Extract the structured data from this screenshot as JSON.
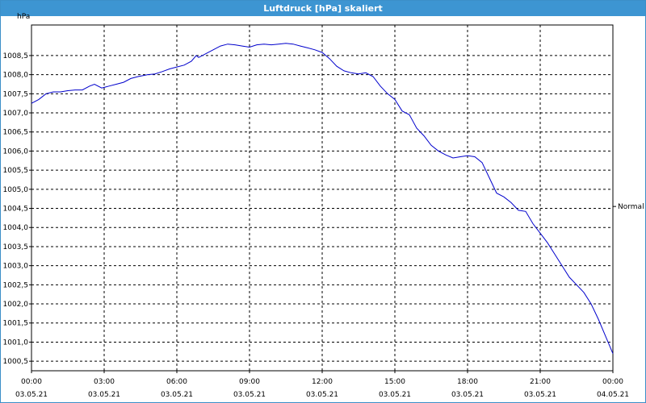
{
  "window": {
    "title": "Luftdruck [hPa] skaliert"
  },
  "colors": {
    "title_bar": "#3d95d2",
    "series_line": "#0000cc",
    "grid": "#000000"
  },
  "chart_data": {
    "type": "line",
    "title": "Luftdruck [hPa] skaliert",
    "ylabel": "hPa",
    "xlabel": "",
    "grid": true,
    "ylim": [
      1000.25,
      1009.3
    ],
    "xlim": [
      0,
      24
    ],
    "y_ticks": [
      1000.5,
      1001.0,
      1001.5,
      1002.0,
      1002.5,
      1003.0,
      1003.5,
      1004.0,
      1004.5,
      1005.0,
      1005.5,
      1006.0,
      1006.5,
      1007.0,
      1007.5,
      1008.0,
      1008.5
    ],
    "y_tick_labels": [
      "1000,5",
      "1001,0",
      "1001,5",
      "1002,0",
      "1002,5",
      "1003,0",
      "1003,5",
      "1004,0",
      "1004,5",
      "1005,0",
      "1005,5",
      "1006,0",
      "1006,5",
      "1007,0",
      "1007,5",
      "1008,0",
      "1008,5"
    ],
    "x_ticks": [
      {
        "time": "00:00",
        "date": "03.05.21"
      },
      {
        "time": "03:00",
        "date": "03.05.21"
      },
      {
        "time": "06:00",
        "date": "03.05.21"
      },
      {
        "time": "09:00",
        "date": "03.05.21"
      },
      {
        "time": "12:00",
        "date": "03.05.21"
      },
      {
        "time": "15:00",
        "date": "03.05.21"
      },
      {
        "time": "18:00",
        "date": "03.05.21"
      },
      {
        "time": "21:00",
        "date": "03.05.21"
      },
      {
        "time": "00:00",
        "date": "04.05.21"
      }
    ],
    "reference_line": {
      "label": "Normal",
      "value": 1004.55
    },
    "series": [
      {
        "x": [
          0.0,
          0.3,
          0.6,
          0.9,
          1.2,
          1.5,
          1.8,
          2.1,
          2.4,
          2.6,
          2.9,
          3.2,
          3.5,
          3.8,
          4.1,
          4.4,
          4.8,
          5.1,
          5.4,
          5.7,
          6.0,
          6.3,
          6.6,
          6.8,
          6.9,
          7.2,
          7.5,
          7.8,
          8.1,
          8.4,
          8.7,
          9.0,
          9.3,
          9.6,
          9.9,
          10.2,
          10.5,
          10.8,
          11.1,
          11.4,
          11.7,
          12.0,
          12.3,
          12.6,
          12.9,
          13.2,
          13.5,
          13.8,
          14.1,
          14.4,
          14.7,
          15.0,
          15.3,
          15.6,
          15.9,
          16.2,
          16.5,
          16.8,
          17.1,
          17.4,
          17.7,
          18.0,
          18.3,
          18.6,
          18.9,
          19.2,
          19.5,
          19.8,
          20.1,
          20.4,
          20.7,
          21.0,
          21.3,
          21.6,
          21.9,
          22.2,
          22.5,
          22.8,
          23.1,
          23.4,
          23.7,
          24.0
        ],
        "y": [
          1007.25,
          1007.35,
          1007.5,
          1007.55,
          1007.55,
          1007.58,
          1007.6,
          1007.6,
          1007.7,
          1007.75,
          1007.65,
          1007.7,
          1007.75,
          1007.8,
          1007.9,
          1007.95,
          1008.0,
          1008.02,
          1008.08,
          1008.15,
          1008.2,
          1008.25,
          1008.35,
          1008.5,
          1008.45,
          1008.55,
          1008.65,
          1008.75,
          1008.8,
          1008.78,
          1008.75,
          1008.72,
          1008.78,
          1008.8,
          1008.78,
          1008.8,
          1008.82,
          1008.8,
          1008.75,
          1008.7,
          1008.65,
          1008.58,
          1008.42,
          1008.22,
          1008.1,
          1008.05,
          1008.02,
          1008.05,
          1007.95,
          1007.7,
          1007.5,
          1007.35,
          1007.05,
          1006.95,
          1006.6,
          1006.4,
          1006.15,
          1006.0,
          1005.9,
          1005.82,
          1005.85,
          1005.88,
          1005.85,
          1005.7,
          1005.3,
          1004.9,
          1004.8,
          1004.65,
          1004.45,
          1004.42,
          1004.1,
          1003.85,
          1003.6,
          1003.3,
          1003.0,
          1002.7,
          1002.5,
          1002.3,
          1002.0,
          1001.6,
          1001.15,
          1000.7
        ]
      }
    ]
  }
}
